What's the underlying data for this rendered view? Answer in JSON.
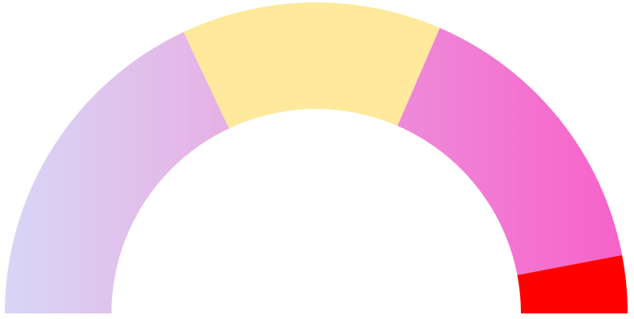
{
  "chart_data": {
    "type": "gauge",
    "shape": "semicircle",
    "segments": [
      {
        "value": 36,
        "colors": [
          "#d8d6f7",
          "#e7b0e4"
        ]
      },
      {
        "value": 27,
        "colors": [
          "#fee99c",
          "#fee99c"
        ]
      },
      {
        "value": 31,
        "colors": [
          "#ee8ad9",
          "#f762c9"
        ]
      },
      {
        "value": 6,
        "colors": [
          "#ff0000",
          "#ff0000"
        ]
      }
    ],
    "total": 100
  }
}
